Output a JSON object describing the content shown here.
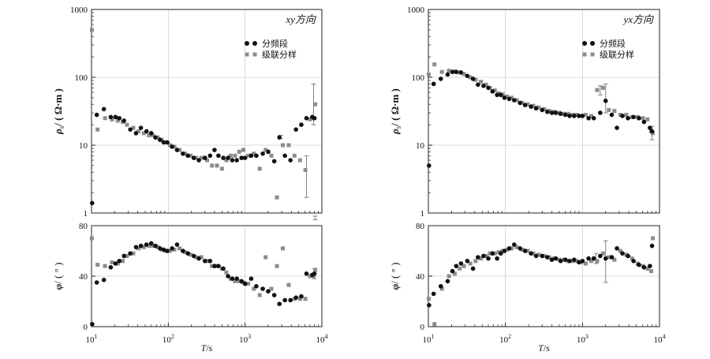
{
  "chart_data": [
    {
      "type": "scatter",
      "title": "xy方向",
      "legend": {
        "position": "top-right",
        "entries": [
          "分频段",
          "级联分样"
        ]
      },
      "x_scale": "log",
      "xlim": [
        10,
        10000
      ],
      "x_ticks": [
        {
          "base": "10",
          "exp": "1"
        },
        {
          "base": "10",
          "exp": "2"
        },
        {
          "base": "10",
          "exp": "3"
        },
        {
          "base": "10",
          "exp": "4"
        }
      ],
      "xlabel": {
        "var": "T",
        "unit": "/s"
      },
      "grid": true,
      "rho": {
        "ylabel": {
          "sym": "ρ",
          "sub": "s",
          "unit": "/ ( Ω·m )"
        },
        "y_scale": "log",
        "ylim": [
          1,
          1000
        ],
        "y_ticks": [
          "1",
          "10",
          "100",
          "1000"
        ],
        "series": [
          {
            "name": "分频段",
            "color": "#111111",
            "marker": "circle",
            "x": [
              10.2,
              11.7,
              14.5,
              17.8,
              20.5,
              23,
              26.5,
              32,
              38,
              44,
              52,
              60,
              68,
              78,
              87,
              97,
              112,
              130,
              155,
              180,
              215,
              250,
              300,
              350,
              400,
              450,
              520,
              600,
              680,
              780,
              900,
              1000,
              1200,
              1400,
              1700,
              2000,
              2400,
              2800,
              3300,
              3900,
              4600,
              5400,
              6300,
              7500,
              8000
            ],
            "y": [
              1.4,
              28,
              34,
              26,
              26,
              25,
              23,
              17,
              15,
              18,
              16,
              15,
              13,
              12,
              11,
              11,
              9.5,
              8.5,
              7.5,
              7,
              6.5,
              6,
              6.5,
              7,
              8.5,
              7,
              6.5,
              6.5,
              6,
              6,
              6.5,
              6.5,
              7,
              7,
              7.5,
              8,
              5.8,
              13,
              7,
              6,
              17,
              20,
              25,
              26,
              25
            ]
          },
          {
            "name": "级联分样",
            "color": "#8c8c8c",
            "marker": "square",
            "x": [
              10.1,
              12,
              15,
              18.5,
              22,
              25.5,
              29,
              35,
              41,
              48,
              56,
              63,
              73,
              82,
              92,
              105,
              120,
              140,
              165,
              195,
              230,
              270,
              320,
              370,
              430,
              500,
              570,
              650,
              740,
              840,
              950,
              1100,
              1300,
              1550,
              1850,
              2200,
              2600,
              3100,
              3700,
              4400,
              5200,
              6100,
              7000,
              7800,
              8200
            ],
            "y": [
              500,
              17,
              25,
              24,
              23,
              22,
              20,
              18,
              16,
              15,
              14,
              14,
              13,
              12,
              11,
              10,
              9.5,
              8.5,
              7.5,
              7,
              6.5,
              6.5,
              6,
              5,
              5,
              4.5,
              6,
              7,
              7,
              8,
              8.5,
              7,
              7.5,
              4.5,
              8.5,
              7,
              1.7,
              10,
              10,
              7,
              6,
              4.3,
              24,
              25,
              40
            ]
          }
        ],
        "error_bars": [
          {
            "x": 2900,
            "low": 12.5,
            "high": 14
          },
          {
            "x": 6300,
            "low": 1.7,
            "high": 7
          },
          {
            "x": 7800,
            "low": 20,
            "high": 80
          },
          {
            "x": 8200,
            "low": 0.8,
            "high": 0.9
          }
        ]
      },
      "phase": {
        "ylabel": {
          "sym": "φ",
          "unit": "/ ( ° )"
        },
        "y_scale": "linear",
        "ylim": [
          0,
          80
        ],
        "y_ticks": [
          "0",
          "40",
          "80"
        ],
        "series": [
          {
            "name": "分频段",
            "color": "#111111",
            "marker": "circle",
            "x": [
              10.2,
              11.7,
              14.5,
              17.8,
              20.5,
              23,
              26.5,
              32,
              38,
              44,
              52,
              60,
              68,
              78,
              87,
              97,
              112,
              130,
              155,
              180,
              215,
              250,
              300,
              350,
              400,
              450,
              520,
              600,
              680,
              780,
              900,
              1000,
              1200,
              1400,
              1700,
              2000,
              2400,
              2800,
              3300,
              3900,
              4600,
              5400,
              6300,
              7500,
              8000
            ],
            "y": [
              2,
              35,
              37,
              47,
              50,
              52,
              56,
              58,
              63,
              64,
              65,
              66,
              64,
              62,
              61,
              60,
              62,
              65,
              60,
              58,
              56,
              54,
              52,
              52,
              48,
              48,
              46,
              40,
              38,
              38,
              36,
              34,
              38,
              32,
              30,
              28,
              25,
              18,
              21,
              21,
              23,
              24,
              42,
              41,
              42
            ]
          },
          {
            "name": "级联分样",
            "color": "#8c8c8c",
            "marker": "square",
            "x": [
              10.1,
              12,
              15,
              18.5,
              22,
              25.5,
              29,
              35,
              41,
              48,
              56,
              63,
              73,
              82,
              92,
              105,
              120,
              140,
              165,
              195,
              230,
              270,
              320,
              370,
              430,
              500,
              570,
              650,
              740,
              840,
              950,
              1100,
              1300,
              1550,
              1850,
              2200,
              2600,
              3100,
              3700,
              4400,
              5200,
              6100,
              7000,
              7800,
              8200
            ],
            "y": [
              70,
              49,
              48,
              51,
              50,
              52,
              56,
              58,
              62,
              63,
              64,
              64,
              63,
              61,
              60,
              60,
              61,
              62,
              59,
              57,
              55,
              55,
              52,
              48,
              48,
              46,
              43,
              38,
              36,
              36,
              35,
              34,
              30,
              25,
              55,
              30,
              48,
              62,
              33,
              22,
              22,
              22,
              40,
              40,
              45
            ]
          }
        ],
        "error_bars": [
          {
            "x": 8000,
            "low": 38,
            "high": 46
          }
        ]
      }
    },
    {
      "type": "scatter",
      "title": "yx方向",
      "legend": {
        "position": "top-right",
        "entries": [
          "分频段",
          "级联分样"
        ]
      },
      "x_scale": "log",
      "xlim": [
        10,
        10000
      ],
      "x_ticks": [
        {
          "base": "10",
          "exp": "1"
        },
        {
          "base": "10",
          "exp": "2"
        },
        {
          "base": "10",
          "exp": "3"
        },
        {
          "base": "10",
          "exp": "4"
        }
      ],
      "xlabel": {
        "var": "T",
        "unit": "/s"
      },
      "grid": true,
      "rho": {
        "ylabel": {
          "sym": "ρ",
          "sub": "s",
          "unit": "/ ( Ω·m )"
        },
        "y_scale": "log",
        "ylim": [
          1,
          1000
        ],
        "y_ticks": [
          "1",
          "10",
          "100",
          "1000"
        ],
        "series": [
          {
            "name": "分频段",
            "color": "#111111",
            "marker": "circle",
            "x": [
              10.2,
              11.7,
              14.5,
              17.8,
              20.5,
              23,
              26.5,
              32,
              38,
              44,
              52,
              60,
              68,
              78,
              87,
              97,
              112,
              130,
              155,
              180,
              215,
              250,
              300,
              350,
              400,
              450,
              520,
              600,
              680,
              780,
              900,
              1000,
              1200,
              1400,
              1700,
              2000,
              2400,
              2800,
              3300,
              3900,
              4600,
              5400,
              6300,
              7500,
              8000
            ],
            "y": [
              5,
              80,
              95,
              110,
              120,
              120,
              118,
              105,
              95,
              78,
              75,
              70,
              62,
              55,
              55,
              50,
              48,
              46,
              42,
              39,
              37,
              35,
              33,
              31,
              30,
              30,
              29,
              28,
              27,
              27,
              27,
              27,
              25,
              25,
              30,
              45,
              28,
              18,
              27,
              25,
              26,
              25,
              22,
              18,
              16
            ]
          },
          {
            "name": "级联分样",
            "color": "#8c8c8c",
            "marker": "square",
            "x": [
              10.1,
              12,
              15,
              18.5,
              22,
              25.5,
              29,
              35,
              41,
              48,
              56,
              63,
              73,
              82,
              92,
              105,
              120,
              140,
              165,
              195,
              230,
              270,
              320,
              370,
              430,
              500,
              570,
              650,
              740,
              840,
              950,
              1100,
              1300,
              1550,
              1850,
              2200,
              2600,
              3100,
              3700,
              4400,
              5200,
              6100,
              7000,
              7800,
              8200
            ],
            "y": [
              110,
              155,
              120,
              125,
              122,
              118,
              112,
              100,
              92,
              86,
              78,
              70,
              64,
              58,
              56,
              52,
              50,
              46,
              42,
              40,
              38,
              36,
              34,
              32,
              31,
              30,
              29,
              29,
              28,
              28,
              27,
              28,
              27,
              65,
              70,
              33,
              32,
              28,
              28,
              26,
              26,
              25,
              24,
              16,
              15
            ]
          }
        ],
        "error_bars": [
          {
            "x": 1700,
            "low": 55,
            "high": 75
          },
          {
            "x": 2000,
            "low": 30,
            "high": 80
          },
          {
            "x": 8000,
            "low": 12,
            "high": 19
          }
        ]
      },
      "phase": {
        "ylabel": {
          "sym": "φ",
          "unit": "/ ( ° )"
        },
        "y_scale": "linear",
        "ylim": [
          0,
          80
        ],
        "y_ticks": [
          "0",
          "40",
          "80"
        ],
        "series": [
          {
            "name": "分频段",
            "color": "#111111",
            "marker": "circle",
            "x": [
              10.2,
              11.7,
              14.5,
              17.8,
              20.5,
              23,
              26.5,
              32,
              38,
              44,
              52,
              60,
              68,
              78,
              87,
              97,
              112,
              130,
              155,
              180,
              215,
              250,
              300,
              350,
              400,
              450,
              520,
              600,
              680,
              780,
              900,
              1000,
              1200,
              1400,
              1700,
              2000,
              2400,
              2800,
              3300,
              3900,
              4600,
              5400,
              6300,
              7500,
              8000
            ],
            "y": [
              17,
              26,
              32,
              36,
              44,
              48,
              50,
              52,
              46,
              55,
              56,
              54,
              58,
              54,
              58,
              60,
              62,
              65,
              62,
              60,
              58,
              56,
              56,
              55,
              53,
              54,
              52,
              53,
              52,
              53,
              51,
              52,
              54,
              54,
              56,
              54,
              55,
              62,
              58,
              56,
              52,
              49,
              47,
              48,
              64
            ]
          },
          {
            "name": "级联分样",
            "color": "#8c8c8c",
            "marker": "square",
            "x": [
              10.1,
              12,
              15,
              18.5,
              22,
              25.5,
              29,
              35,
              41,
              48,
              56,
              63,
              73,
              82,
              92,
              105,
              120,
              140,
              165,
              195,
              230,
              270,
              320,
              370,
              430,
              500,
              570,
              650,
              740,
              840,
              950,
              1100,
              1300,
              1550,
              1850,
              2200,
              2600,
              3100,
              3700,
              4400,
              5200,
              6100,
              7000,
              7800,
              8200
            ],
            "y": [
              22,
              2,
              30,
              40,
              42,
              46,
              48,
              50,
              52,
              54,
              56,
              58,
              58,
              59,
              60,
              61,
              62,
              63,
              61,
              60,
              58,
              57,
              56,
              55,
              54,
              53,
              53,
              52,
              52,
              52,
              51,
              50,
              52,
              52,
              58,
              55,
              53,
              60,
              57,
              54,
              50,
              48,
              46,
              44,
              70
            ]
          }
        ],
        "error_bars": [
          {
            "x": 2000,
            "low": 35,
            "high": 68
          },
          {
            "x": 1500,
            "low": 50,
            "high": 58
          }
        ]
      }
    }
  ]
}
